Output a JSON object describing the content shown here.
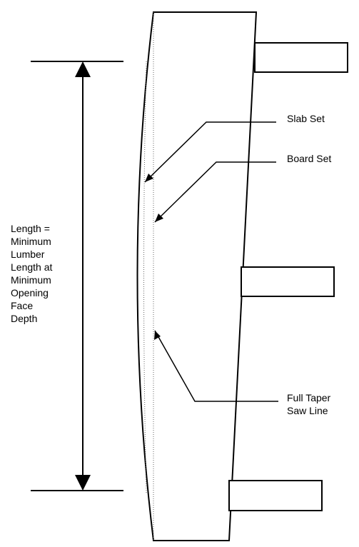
{
  "diagram": {
    "labels": {
      "length_lines": [
        "Length =",
        "Minimum",
        "Lumber",
        "Length at",
        "Minimum",
        "Opening",
        "Face",
        "Depth"
      ],
      "slab_set": "Slab Set",
      "board_set": "Board Set",
      "full_taper_lines": [
        "Full Taper",
        "Saw Line"
      ]
    },
    "colors": {
      "stroke": "#000000",
      "background": "#ffffff"
    }
  }
}
